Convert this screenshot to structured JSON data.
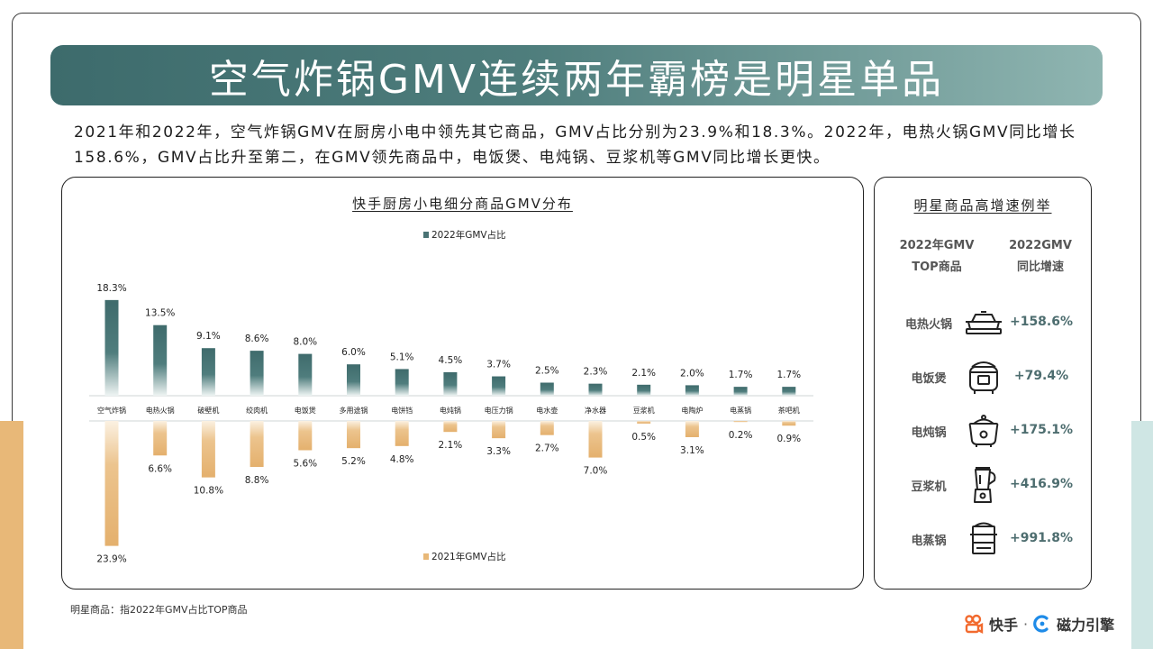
{
  "page": {
    "title": "空气炸锅GMV连续两年霸榜是明星单品",
    "summary": "2021年和2022年，空气炸锅GMV在厨房小电中领先其它商品，GMV占比分别为23.9%和18.3%。2022年，电热火锅GMV同比增长158.6%，GMV占比升至第二，在GMV领先商品中，电饭煲、电炖锅、豆浆机等GMV同比增长更快。",
    "footnote": "明星商品：指2022年GMV占比TOP商品"
  },
  "colors": {
    "banner_start": "#3d6b6c",
    "banner_end": "#8fb5b1",
    "series_2022": "#4a7374",
    "series_2021": "#e8b878",
    "growth_text": "#4d6d6f",
    "side_left": "#e8b878",
    "side_right": "#cfe6e4"
  },
  "chart_data": {
    "type": "bar",
    "title": "快手厨房小电细分商品GMV分布",
    "categories": [
      "空气炸锅",
      "电热火锅",
      "破壁机",
      "绞肉机",
      "电饭煲",
      "多用途锅",
      "电饼铛",
      "电炖锅",
      "电压力锅",
      "电水壶",
      "净水器",
      "豆浆机",
      "电陶炉",
      "电蒸锅",
      "茶吧机"
    ],
    "series": [
      {
        "name": "2022年GMV占比",
        "direction": "up",
        "values": [
          18.3,
          13.5,
          9.1,
          8.6,
          8.0,
          6.0,
          5.1,
          4.5,
          3.7,
          2.5,
          2.3,
          2.1,
          2.0,
          1.7,
          1.7
        ],
        "labels": [
          "18.3%",
          "13.5%",
          "9.1%",
          "8.6%",
          "8.0%",
          "6.0%",
          "5.1%",
          "4.5%",
          "3.7%",
          "2.5%",
          "2.3%",
          "2.1%",
          "2.0%",
          "1.7%",
          "1.7%"
        ]
      },
      {
        "name": "2021年GMV占比",
        "direction": "down",
        "values": [
          23.9,
          6.6,
          10.8,
          8.8,
          5.6,
          5.2,
          4.8,
          2.1,
          3.3,
          2.7,
          7.0,
          0.5,
          3.1,
          0.2,
          0.9
        ],
        "labels": [
          "23.9%",
          "6.6%",
          "10.8%",
          "8.8%",
          "5.6%",
          "5.2%",
          "4.8%",
          "2.1%",
          "3.3%",
          "2.7%",
          "7.0%",
          "0.5%",
          "3.1%",
          "0.2%",
          "0.9%"
        ]
      }
    ],
    "legend_placement": "top and bottom"
  },
  "star_products": {
    "title": "明星商品高增速例举",
    "col1_line1": "2022年GMV",
    "col1_line2": "TOP商品",
    "col2_line1": "2022GMV",
    "col2_line2": "同比增速",
    "items": [
      {
        "name": "电热火锅",
        "icon": "hot-pot-icon",
        "growth": "+158.6%"
      },
      {
        "name": "电饭煲",
        "icon": "rice-cooker-icon",
        "growth": "+79.4%"
      },
      {
        "name": "电炖锅",
        "icon": "stew-pot-icon",
        "growth": "+175.1%"
      },
      {
        "name": "豆浆机",
        "icon": "soymilk-maker-icon",
        "growth": "+416.9%"
      },
      {
        "name": "电蒸锅",
        "icon": "steamer-icon",
        "growth": "+991.8%"
      }
    ]
  },
  "brand": {
    "kuaishou": "快手",
    "separator": "·",
    "cili": "磁力引擎"
  }
}
